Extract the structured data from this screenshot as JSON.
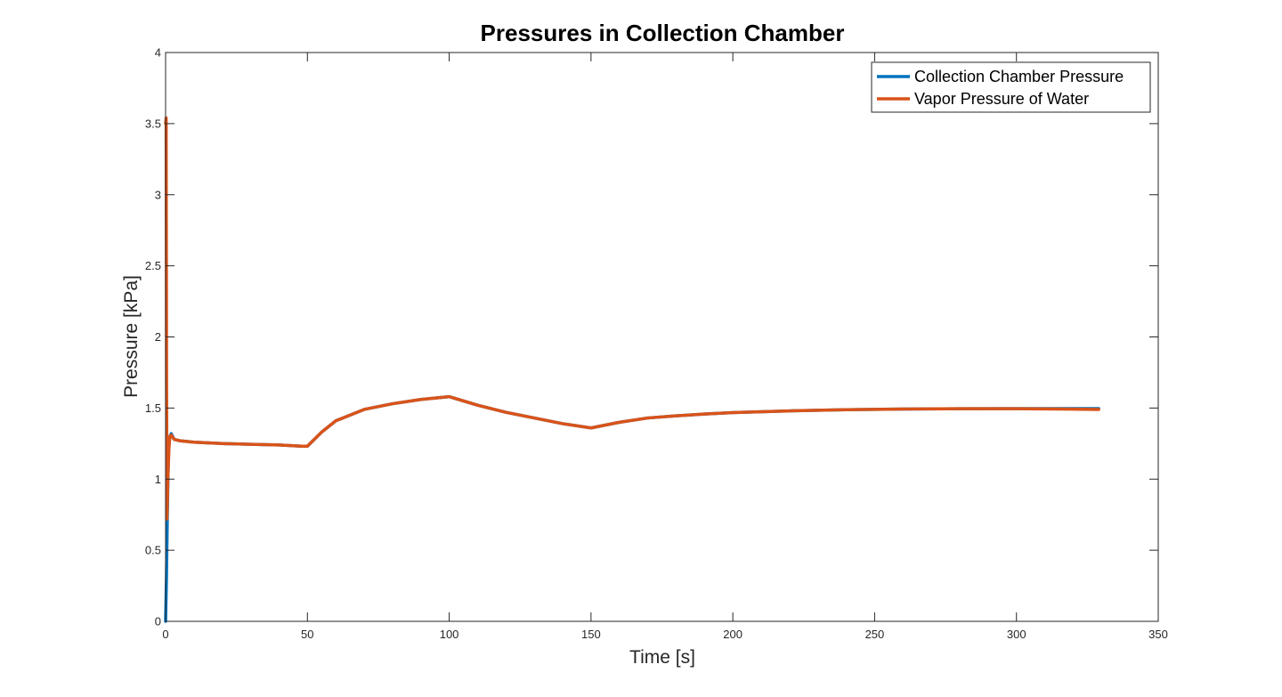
{
  "chart_data": {
    "type": "line",
    "title": "Pressures in Collection Chamber",
    "xlabel": "Time [s]",
    "ylabel": "Pressure [kPa]",
    "xlim": [
      0,
      350
    ],
    "ylim": [
      0,
      4
    ],
    "xticks": [
      0,
      50,
      100,
      150,
      200,
      250,
      300,
      350
    ],
    "yticks": [
      0,
      0.5,
      1,
      1.5,
      2,
      2.5,
      3,
      3.5,
      4
    ],
    "xtick_labels": [
      "0",
      "50",
      "100",
      "150",
      "200",
      "250",
      "300",
      "350"
    ],
    "ytick_labels": [
      "0",
      "0.5",
      "1",
      "1.5",
      "2",
      "2.5",
      "3",
      "3.5",
      "4"
    ],
    "grid": false,
    "legend_position": "top-right",
    "series": [
      {
        "name": "Collection Chamber Pressure",
        "color": "#0072BD",
        "x": [
          0,
          0.3,
          0.6,
          1,
          1.5,
          2,
          3,
          5,
          10,
          20,
          30,
          40,
          48,
          50,
          55,
          60,
          70,
          80,
          90,
          100,
          110,
          120,
          130,
          140,
          150,
          160,
          170,
          180,
          190,
          200,
          220,
          240,
          260,
          280,
          300,
          320,
          329
        ],
        "y": [
          0,
          0.3,
          0.72,
          1.2,
          1.3,
          1.32,
          1.28,
          1.27,
          1.26,
          1.25,
          1.245,
          1.24,
          1.232,
          1.232,
          1.33,
          1.41,
          1.49,
          1.53,
          1.56,
          1.58,
          1.52,
          1.47,
          1.43,
          1.39,
          1.36,
          1.4,
          1.43,
          1.445,
          1.458,
          1.468,
          1.48,
          1.488,
          1.493,
          1.495,
          1.496,
          1.496,
          1.496
        ]
      },
      {
        "name": "Vapor Pressure of Water",
        "color": "#D95319",
        "x": [
          0,
          0.2,
          0.35,
          0.5,
          0.8,
          1.2,
          1.5,
          2,
          3,
          5,
          10,
          20,
          30,
          40,
          48,
          50,
          55,
          60,
          70,
          80,
          90,
          100,
          110,
          120,
          130,
          140,
          150,
          160,
          170,
          180,
          190,
          200,
          220,
          240,
          260,
          280,
          300,
          320,
          329
        ],
        "y": [
          3.5,
          3.54,
          1.7,
          0.72,
          1.0,
          1.22,
          1.3,
          1.31,
          1.28,
          1.27,
          1.26,
          1.25,
          1.245,
          1.24,
          1.232,
          1.232,
          1.33,
          1.41,
          1.49,
          1.53,
          1.56,
          1.58,
          1.52,
          1.47,
          1.43,
          1.39,
          1.36,
          1.4,
          1.43,
          1.445,
          1.458,
          1.468,
          1.48,
          1.488,
          1.493,
          1.495,
          1.495,
          1.492,
          1.49
        ]
      }
    ]
  }
}
